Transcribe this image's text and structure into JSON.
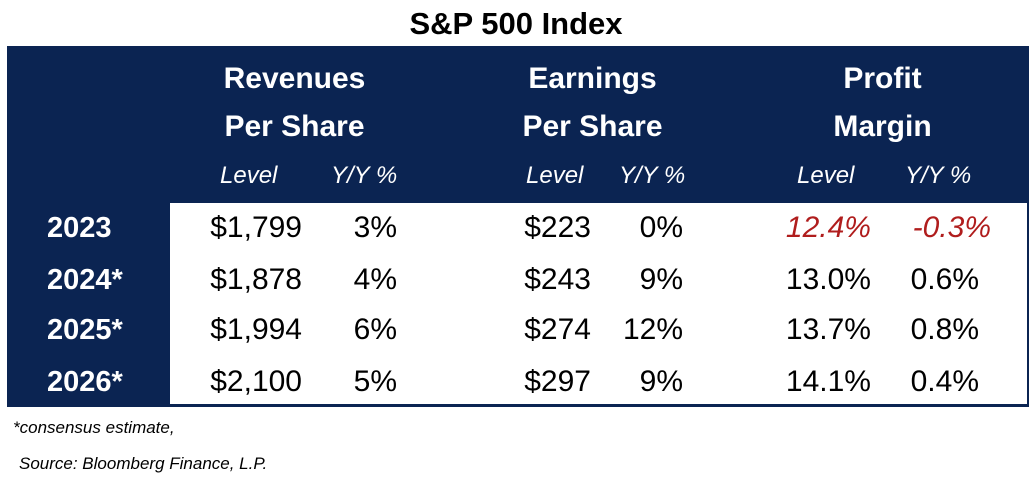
{
  "title": "S&P 500 Index",
  "headers": {
    "revenues_line1": "Revenues",
    "revenues_line2": "Per Share",
    "earnings_line1": "Earnings",
    "earnings_line2": "Per Share",
    "margin_line1": "Profit",
    "margin_line2": "Margin",
    "level": "Level",
    "yoy": "Y/Y %"
  },
  "rows": [
    {
      "year": "2023",
      "rev_level": "$1,799",
      "rev_yoy": "3%",
      "eps_level": "$223",
      "eps_yoy": "0%",
      "margin_level": "12.4%",
      "margin_yoy": "-0.3%"
    },
    {
      "year": "2024*",
      "rev_level": "$1,878",
      "rev_yoy": "4%",
      "eps_level": "$243",
      "eps_yoy": "9%",
      "margin_level": "13.0%",
      "margin_yoy": "0.6%"
    },
    {
      "year": "2025*",
      "rev_level": "$1,994",
      "rev_yoy": "6%",
      "eps_level": "$274",
      "eps_yoy": "12%",
      "margin_level": "13.7%",
      "margin_yoy": "0.8%"
    },
    {
      "year": "2026*",
      "rev_level": "$2,100",
      "rev_yoy": "5%",
      "eps_level": "$297",
      "eps_yoy": "9%",
      "margin_level": "14.1%",
      "margin_yoy": "0.4%"
    }
  ],
  "footnotes": {
    "estimate": "*consensus estimate,",
    "source": "Source: Bloomberg Finance, L.P."
  },
  "colors": {
    "header_bg": "#0b2452",
    "negative_text": "#b01d1d"
  }
}
